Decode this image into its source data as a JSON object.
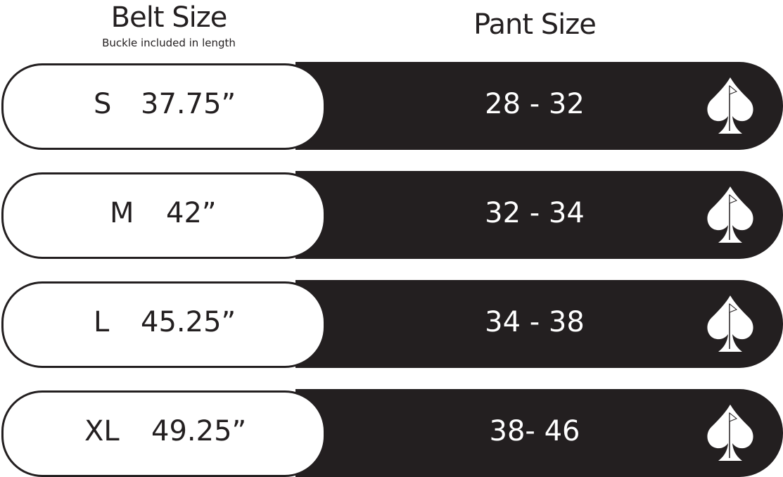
{
  "headers": {
    "belt": "Belt Size",
    "belt_note": "Buckle included in length",
    "pant": "Pant Size"
  },
  "rows": [
    {
      "size": "S",
      "length": "37.75”",
      "pant": "28 - 32"
    },
    {
      "size": "M",
      "length": "42”",
      "pant": "32 - 34"
    },
    {
      "size": "L",
      "length": "45.25”",
      "pant": "34 - 38"
    },
    {
      "size": "XL",
      "length": "49.25”",
      "pant": "38- 46"
    }
  ],
  "icon": "spade-golf-flag-icon",
  "colors": {
    "dark": "#231f20",
    "light": "#ffffff"
  }
}
